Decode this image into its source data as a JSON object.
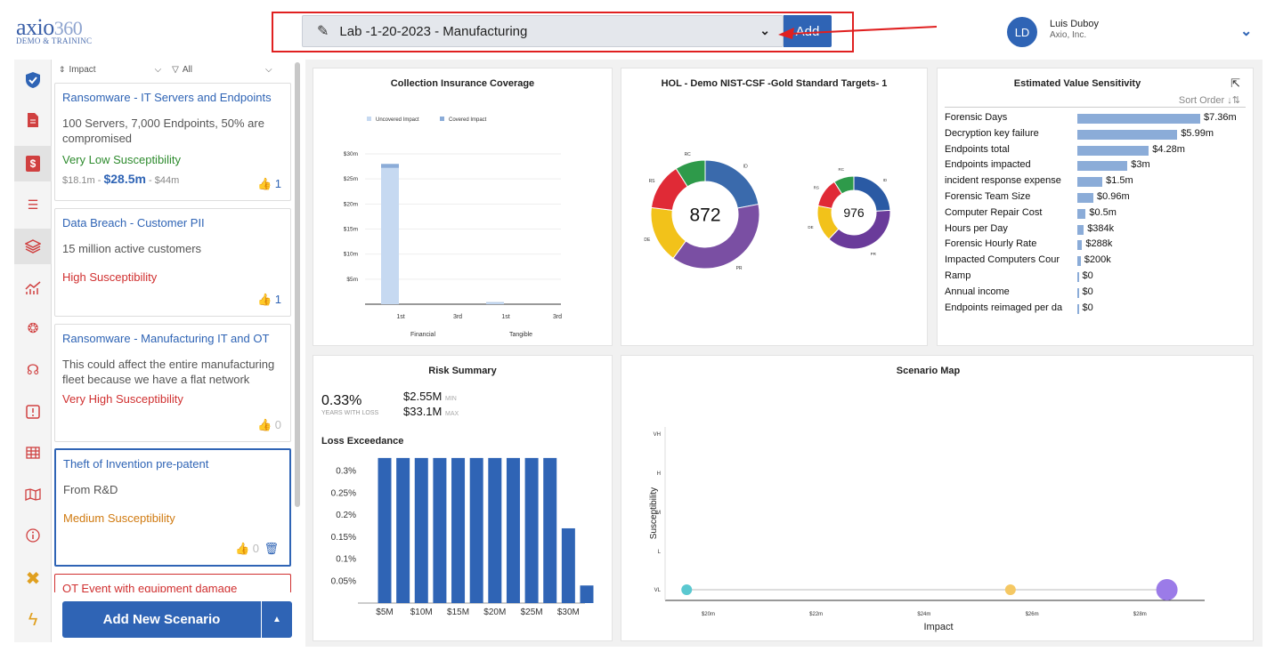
{
  "logo": {
    "brand": "axio",
    "num": "360",
    "sub": "DEMO & TRAININC"
  },
  "header": {
    "selector_value": "Lab -1-20-2023 - Manufacturing",
    "add_label": "Add",
    "user_initials": "LD",
    "user_name": "Luis Duboy",
    "user_org": "Axio, Inc."
  },
  "filters": {
    "sort_label": "Impact",
    "filter_label": "All"
  },
  "scenarios": [
    {
      "title": "Ransomware - IT Servers and Endpoints",
      "desc": "100 Servers, 7,000 Endpoints, 50% are compromised",
      "susceptibility": "Very Low Susceptibility",
      "sus_color": "#2e8b2e",
      "range_low": "$18.1m",
      "range_mid": "$28.5m",
      "range_high": "$44m",
      "likes": "1"
    },
    {
      "title": "Data Breach - Customer PII",
      "desc": "15 million active customers",
      "susceptibility": "High Susceptibility",
      "sus_color": "#d03030",
      "likes": "1"
    },
    {
      "title": "Ransomware - Manufacturing IT and OT",
      "desc": "This could affect the entire manufacturing fleet because we have a flat network",
      "susceptibility": "Very High Susceptibility",
      "sus_color": "#d03030",
      "likes": "0"
    },
    {
      "title": "Theft of Invention pre-patent",
      "desc": "From R&D",
      "susceptibility": "Medium Susceptibility",
      "sus_color": "#d07a10",
      "likes": "0"
    },
    {
      "title": "OT Event with equipment damage"
    }
  ],
  "add_scenario_label": "Add New Scenario",
  "panels": {
    "collection": {
      "title": "Collection Insurance Coverage"
    },
    "hol": {
      "title": "HOL - Demo NIST-CSF -Gold Standard Targets- 1"
    },
    "evs": {
      "title": "Estimated Value Sensitivity",
      "sort_label": "Sort Order"
    },
    "risk": {
      "title": "Risk Summary",
      "pct": "0.33%",
      "pct_label": "YEARS WITH LOSS",
      "min_val": "$2.55M",
      "min_label": "MIN",
      "max_val": "$33.1M",
      "max_label": "MAX",
      "loss_title": "Loss Exceedance"
    },
    "map": {
      "title": "Scenario Map"
    }
  },
  "chart_data": [
    {
      "type": "bar",
      "title": "Collection Insurance Coverage",
      "categories": [
        "1st",
        "3rd",
        "1st",
        "3rd"
      ],
      "groups": [
        "Financial",
        "Tangible"
      ],
      "series": [
        {
          "name": "Uncovered Impact",
          "values": [
            27.2,
            0,
            0.3,
            0
          ],
          "color": "#c6d9f1"
        },
        {
          "name": "Covered Impact",
          "values": [
            0.8,
            0,
            0.1,
            0
          ],
          "color": "#8bacd8"
        }
      ],
      "yticks": [
        "$30m",
        "$25m",
        "$20m",
        "$15m",
        "$10m",
        "$5m"
      ],
      "ylim": [
        0,
        30
      ]
    },
    {
      "type": "pie",
      "title": "HOL - Demo NIST-CSF -Gold Standard Targets- 1",
      "center_value": "872",
      "labels": [
        "ID",
        "PR",
        "DE",
        "RS",
        "RC"
      ],
      "values": [
        22,
        38,
        17,
        14,
        9
      ],
      "colors": [
        "#3a6aac",
        "#7a4fa3",
        "#f2c21a",
        "#e02a36",
        "#2e9a4a"
      ]
    },
    {
      "type": "pie",
      "center_value": "976",
      "labels": [
        "ID",
        "PR",
        "DE",
        "RS",
        "RC"
      ],
      "values": [
        24,
        38,
        16,
        13,
        9
      ],
      "colors": [
        "#2a5aa4",
        "#6a3b9a",
        "#f2c21a",
        "#e02a36",
        "#2e9a4a"
      ]
    },
    {
      "type": "bar",
      "title": "Estimated Value Sensitivity",
      "categories": [
        "Forensic Days",
        "Decryption key failure",
        "Endpoints total",
        "Endpoints impacted",
        "incident response expense",
        "Forensic Team Size",
        "Computer Repair Cost",
        "Hours per Day",
        "Forensic Hourly Rate",
        "Impacted Computers Cour",
        "Ramp",
        "Annual income",
        "Endpoints reimaged per da"
      ],
      "values": [
        7.36,
        5.99,
        4.28,
        3.0,
        1.5,
        0.96,
        0.5,
        0.384,
        0.288,
        0.2,
        0,
        0,
        0
      ],
      "labels": [
        "$7.36m",
        "$5.99m",
        "$4.28m",
        "$3m",
        "$1.5m",
        "$0.96m",
        "$0.5m",
        "$384k",
        "$288k",
        "$200k",
        "$0",
        "$0",
        "$0"
      ]
    },
    {
      "type": "bar",
      "title": "Loss Exceedance",
      "x": [
        5,
        7.5,
        10,
        12.5,
        15,
        17.5,
        20,
        22.5,
        25,
        27.5,
        30,
        32.5
      ],
      "values": [
        0.33,
        0.33,
        0.33,
        0.33,
        0.33,
        0.33,
        0.33,
        0.33,
        0.33,
        0.33,
        0.17,
        0.04
      ],
      "xticks": [
        "$5M",
        "$10M",
        "$15M",
        "$20M",
        "$25M",
        "$30M"
      ],
      "yticks": [
        "0.3%",
        "0.25%",
        "0.2%",
        "0.15%",
        "0.1%",
        "0.05%"
      ],
      "ylim": [
        0,
        0.35
      ]
    },
    {
      "type": "scatter",
      "title": "Scenario Map",
      "xlabel": "Impact",
      "ylabel": "Susceptibility",
      "xticks": [
        "$20m",
        "$22m",
        "$24m",
        "$26m",
        "$28m"
      ],
      "yticks": [
        "VH",
        "H",
        "M",
        "L",
        "VL"
      ],
      "points": [
        {
          "x": 19.6,
          "y": "VL",
          "size": 6,
          "color": "#5ac8d0"
        },
        {
          "x": 25.6,
          "y": "VL",
          "size": 6,
          "color": "#f5c863"
        },
        {
          "x": 28.5,
          "y": "VL",
          "size": 12,
          "color": "#9b7be8"
        }
      ],
      "xlim": [
        19.2,
        29.2
      ]
    }
  ]
}
